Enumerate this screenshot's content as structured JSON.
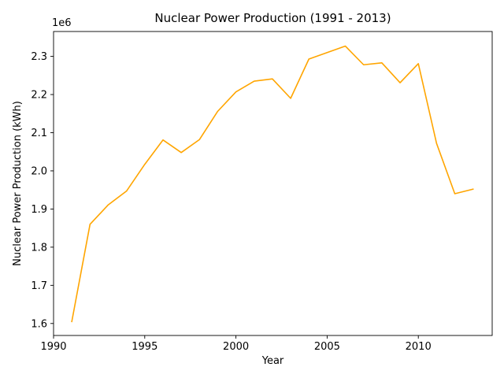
{
  "chart_data": {
    "type": "line",
    "title": "Nuclear Power Production (1991 - 2013)",
    "xlabel": "Year",
    "ylabel": "Nuclear Power Production (kWh)",
    "y_offset_label": "1e6",
    "y_scale": 1000000,
    "xlim": [
      1990.0,
      2014.05
    ],
    "ylim": [
      1.5686,
      2.3652
    ],
    "x_ticks": [
      1990,
      1995,
      2000,
      2005,
      2010
    ],
    "y_ticks": [
      1.6,
      1.7,
      1.8,
      1.9,
      2.0,
      2.1,
      2.2,
      2.3
    ],
    "grid": false,
    "line_color": "#FFA500",
    "series": [
      {
        "x": [
          1991,
          1992,
          1993,
          1994,
          1995,
          1996,
          1997,
          1998,
          1999,
          2000,
          2001,
          2002,
          2003,
          2004,
          2005,
          2006,
          2007,
          2008,
          2009,
          2010,
          2011,
          2012,
          2013
        ],
        "values": [
          1605000,
          1860000,
          1911000,
          1947000,
          2017000,
          2081000,
          2048000,
          2082000,
          2156000,
          2207000,
          2235000,
          2241000,
          2190000,
          2293000,
          2310000,
          2327000,
          2278000,
          2283000,
          2231000,
          2281000,
          2072000,
          1940000,
          1952000
        ]
      }
    ]
  }
}
